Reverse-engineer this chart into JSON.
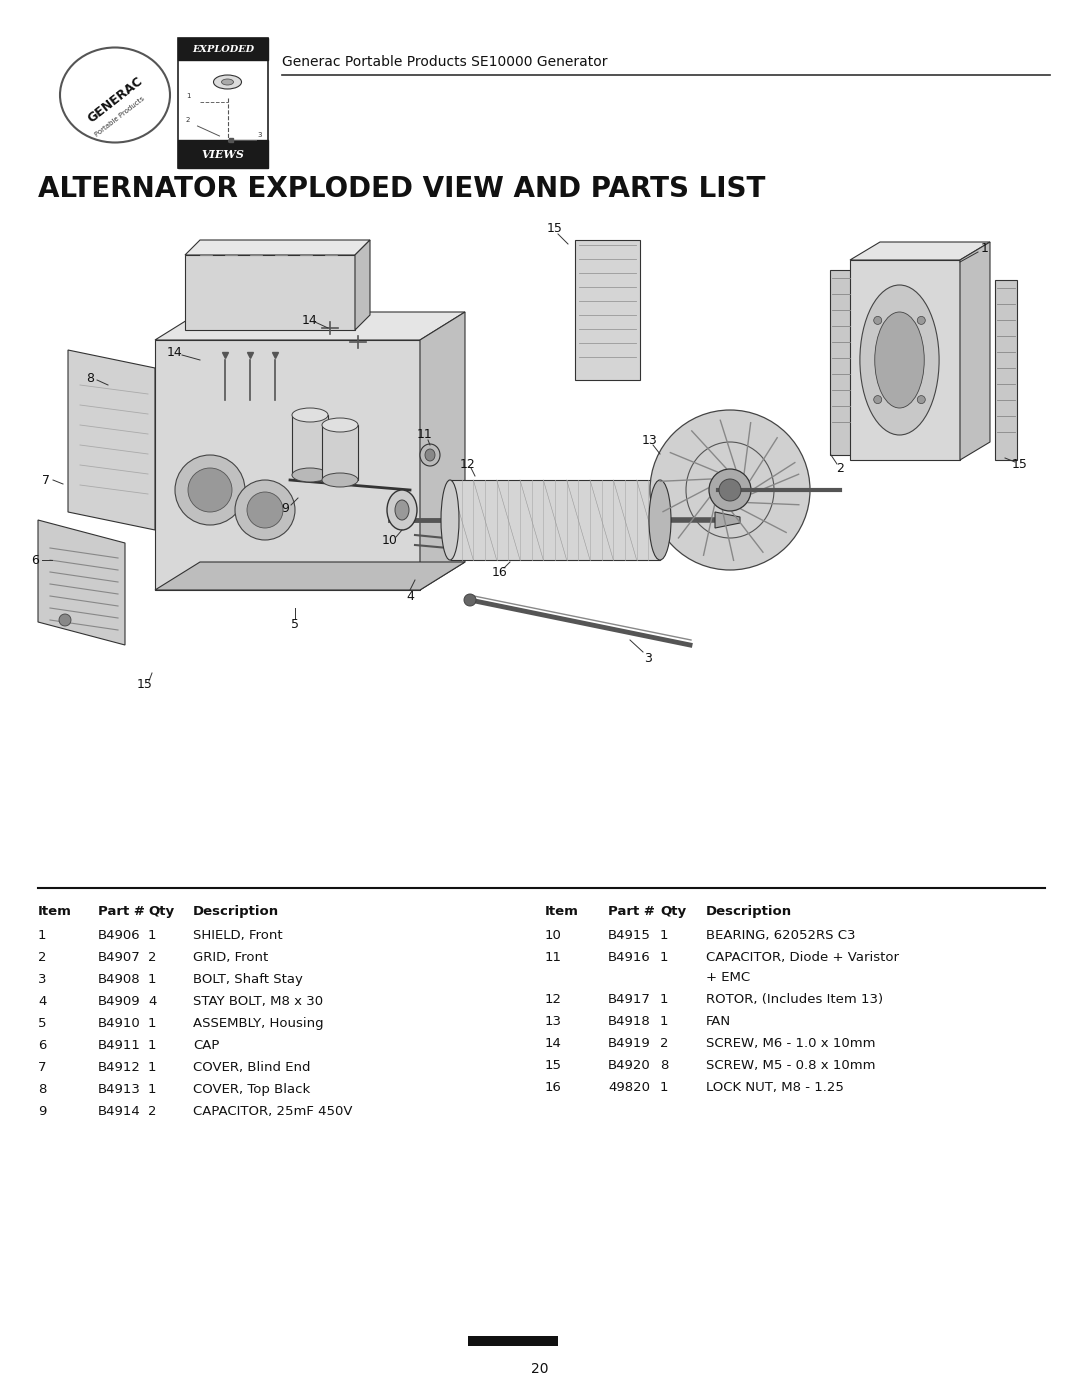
{
  "page_title": "Generac Portable Products SE10000 Generator",
  "section_title": "ALTERNATOR EXPLODED VIEW AND PARTS LIST",
  "page_number": "20",
  "background_color": "#ffffff",
  "table_headers": [
    "Item",
    "Part #",
    "Qty",
    "Description"
  ],
  "left_table": [
    [
      "1",
      "B4906",
      "1",
      "SHIELD, Front"
    ],
    [
      "2",
      "B4907",
      "2",
      "GRID, Front"
    ],
    [
      "3",
      "B4908",
      "1",
      "BOLT, Shaft Stay"
    ],
    [
      "4",
      "B4909",
      "4",
      "STAY BOLT, M8 x 30"
    ],
    [
      "5",
      "B4910",
      "1",
      "ASSEMBLY, Housing"
    ],
    [
      "6",
      "B4911",
      "1",
      "CAP"
    ],
    [
      "7",
      "B4912",
      "1",
      "COVER, Blind End"
    ],
    [
      "8",
      "B4913",
      "1",
      "COVER, Top Black"
    ],
    [
      "9",
      "B4914",
      "2",
      "CAPACITOR, 25mF 450V"
    ]
  ],
  "right_table": [
    [
      "10",
      "B4915",
      "1",
      "BEARING, 62052RS C3"
    ],
    [
      "11",
      "B4916",
      "1",
      "CAPACITOR, Diode + Varistor\n+ EMC"
    ],
    [
      "12",
      "B4917",
      "1",
      "ROTOR, (Includes Item 13)"
    ],
    [
      "13",
      "B4918",
      "1",
      "FAN"
    ],
    [
      "14",
      "B4919",
      "2",
      "SCREW, M6 - 1.0 x 10mm"
    ],
    [
      "15",
      "B4920",
      "8",
      "SCREW, M5 - 0.8 x 10mm"
    ],
    [
      "16",
      "49820",
      "1",
      "LOCK NUT, M8 - 1.25"
    ]
  ]
}
